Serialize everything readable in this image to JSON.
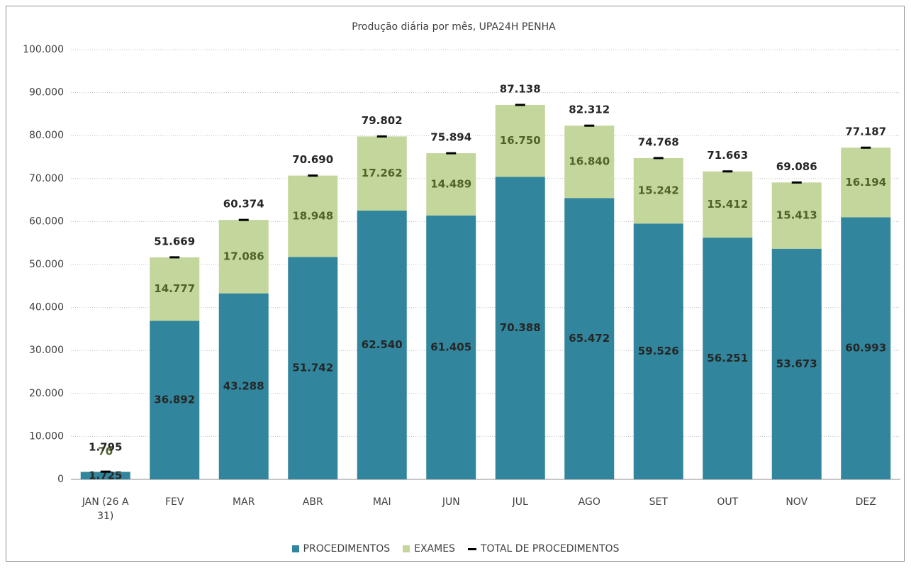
{
  "chart_data": {
    "type": "bar",
    "stacked": true,
    "title": "Produção diária por mês, UPA24H  PENHA",
    "categories": [
      "JAN (26 A 31)",
      "FEV",
      "MAR",
      "ABR",
      "MAI",
      "JUN",
      "JUL",
      "AGO",
      "SET",
      "OUT",
      "NOV",
      "DEZ"
    ],
    "series": [
      {
        "name": "PROCEDIMENTOS",
        "color": "#31859c",
        "type": "bar",
        "values": [
          1725,
          36892,
          43288,
          51742,
          62540,
          61405,
          70388,
          65472,
          59526,
          56251,
          53673,
          60993
        ],
        "value_labels": [
          "1.725",
          "36.892",
          "43.288",
          "51.742",
          "62.540",
          "61.405",
          "70.388",
          "65.472",
          "59.526",
          "56.251",
          "53.673",
          "60.993"
        ]
      },
      {
        "name": "EXAMES",
        "color": "#c3d69b",
        "type": "bar",
        "values": [
          70,
          14777,
          17086,
          18948,
          17262,
          14489,
          16750,
          16840,
          15242,
          15412,
          15413,
          16194
        ],
        "value_labels": [
          "70",
          "14.777",
          "17.086",
          "18.948",
          "17.262",
          "14.489",
          "16.750",
          "16.840",
          "15.242",
          "15.412",
          "15.413",
          "16.194"
        ]
      },
      {
        "name": "TOTAL DE PROCEDIMENTOS",
        "color": "#000000",
        "type": "marker",
        "values": [
          1795,
          51669,
          60374,
          70690,
          79802,
          75894,
          87138,
          82312,
          74768,
          71663,
          69086,
          77187
        ],
        "value_labels": [
          "1.795",
          "51.669",
          "60.374",
          "70.690",
          "79.802",
          "75.894",
          "87.138",
          "82.312",
          "74.768",
          "71.663",
          "69.086",
          "77.187"
        ]
      }
    ],
    "ylim": [
      0,
      100000
    ],
    "yticks": [
      0,
      {
        "value": 10000,
        "label": "10.000"
      },
      {
        "value": 20000,
        "label": "20.000"
      },
      {
        "value": 30000,
        "label": "30.000"
      },
      {
        "value": 40000,
        "label": "40.000"
      },
      {
        "value": 50000,
        "label": "50.000"
      },
      {
        "value": 60000,
        "label": "60.000"
      },
      {
        "value": 70000,
        "label": "70.000"
      },
      {
        "value": 80000,
        "label": "80.000"
      },
      {
        "value": 90000,
        "label": "90.000"
      },
      {
        "value": 100000,
        "label": "100.000"
      }
    ],
    "grid": true,
    "legend": "bottom"
  }
}
